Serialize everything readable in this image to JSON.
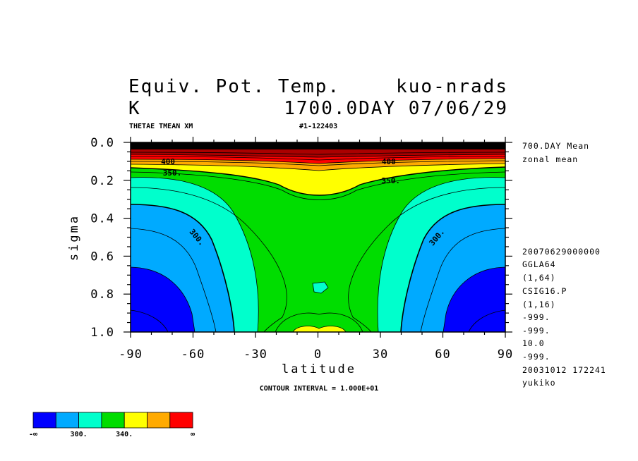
{
  "chart_data": {
    "type": "contour",
    "title_left": "Equiv. Pot. Temp.",
    "title_right": "kuo-nrads",
    "unit": "K",
    "time": "1700.0DAY 07/06/29",
    "variable": "THETAE TMEAN XM",
    "run_id": "#1-122403",
    "xlabel": "latitude",
    "ylabel": "sigma",
    "xlim": [
      -90,
      90
    ],
    "ylim": [
      1.0,
      0.0
    ],
    "x_ticks": [
      "-90",
      "-60",
      "-30",
      "0",
      "30",
      "60",
      "90"
    ],
    "y_ticks": [
      "0.0",
      "0.2",
      "0.4",
      "0.6",
      "0.8",
      "1.0"
    ],
    "x_tick_values": [
      -90,
      -60,
      -30,
      0,
      30,
      60,
      90
    ],
    "y_tick_values": [
      0.0,
      0.2,
      0.4,
      0.6,
      0.8,
      1.0
    ],
    "contour_interval": "CONTOUR INTERVAL = 1.000E+01",
    "contour_labels": [
      {
        "text": "350.",
        "x": -70,
        "y": 0.16
      },
      {
        "text": "350.",
        "x": 35,
        "y": 0.2
      },
      {
        "text": "300.",
        "x": -58,
        "y": 0.5,
        "rotate": 50
      },
      {
        "text": "300.",
        "x": 57,
        "y": 0.5,
        "rotate": -50
      },
      {
        "text": "400",
        "x": -72,
        "y": 0.1
      },
      {
        "text": "400",
        "x": 34,
        "y": 0.1
      }
    ],
    "side_info": [
      "700.DAY Mean",
      "zonal mean",
      "20070629000000",
      "GGLA64",
      "(1,64)",
      "CSIG16.P",
      "(1,16)",
      "-999.",
      "-999.",
      "10.0",
      "-999.",
      "20031012 172241",
      "yukiko"
    ],
    "legend": {
      "colors": [
        "#0000ff",
        "#00aaff",
        "#00ffcc",
        "#00dd00",
        "#ffff00",
        "#ffaa00",
        "#ff0000"
      ],
      "labels": [
        "-∞",
        "300.",
        "340.",
        "∞"
      ]
    }
  }
}
